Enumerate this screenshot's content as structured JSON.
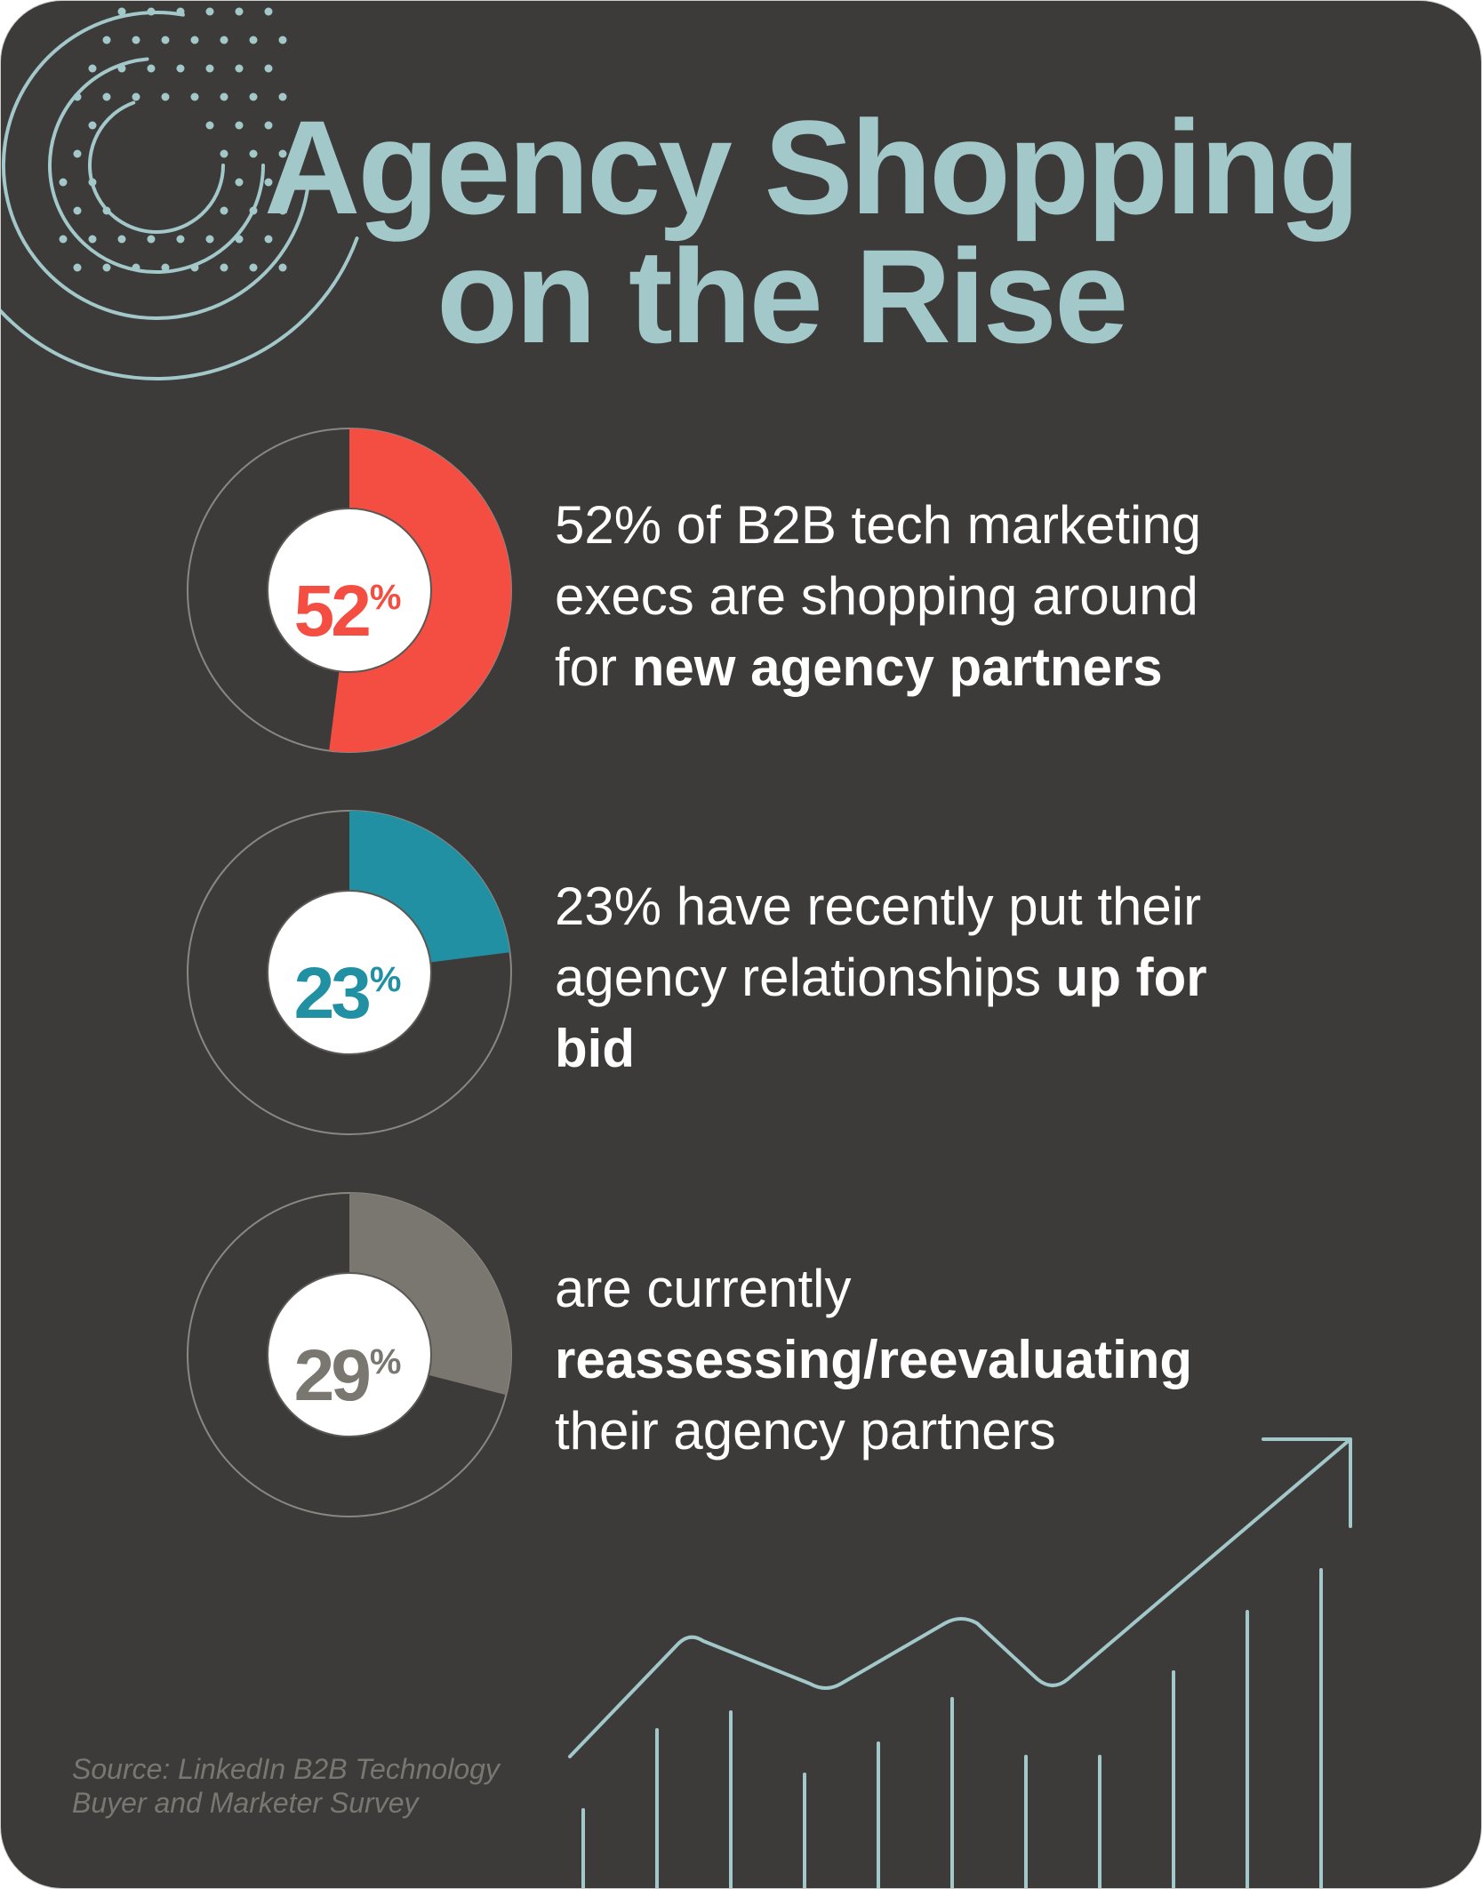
{
  "title": {
    "line1": "Agency Shopping",
    "line2": "on the Rise"
  },
  "colors": {
    "background": "#3d3b39",
    "title": "#a3c8ca",
    "accent_line": "#a3c8ca",
    "ring": "#8a8682"
  },
  "chart_data": [
    {
      "type": "pie",
      "style": "donut",
      "value": 52,
      "label": "52",
      "unit": "%",
      "color": "#f44e42",
      "text": {
        "pre": "52% of B2B tech marketing execs are shopping around for ",
        "bold": "new agency partners",
        "post": ""
      }
    },
    {
      "type": "pie",
      "style": "donut",
      "value": 23,
      "label": "23",
      "unit": "%",
      "color": "#2290a3",
      "text": {
        "pre": "23% have recently put their agency relationships ",
        "bold": "up for bid",
        "post": ""
      }
    },
    {
      "type": "pie",
      "style": "donut",
      "value": 29,
      "label": "29",
      "unit": "%",
      "color": "#7a7670",
      "text": {
        "pre": "are currently ",
        "bold": "reassessing/reevaluating",
        "post": " their agency partners"
      }
    }
  ],
  "source": "Source: LinkedIn B2B Technology Buyer and Marketer Survey"
}
